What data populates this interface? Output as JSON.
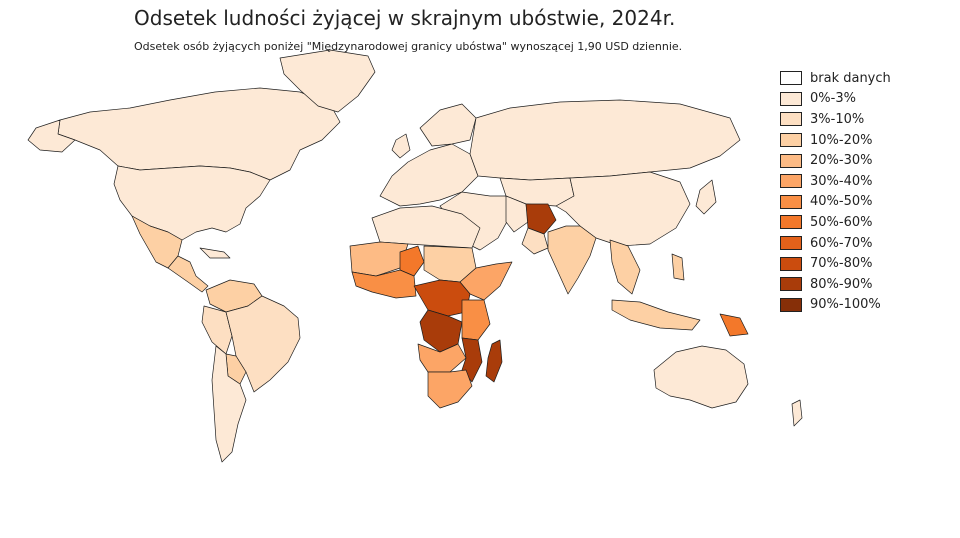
{
  "header": {
    "title": "Odsetek ludności żyjącej w skrajnym ubóstwie, 2024r.",
    "subtitle": "Odsetek osób żyjących poniżej \"Międzynarodowej granicy ubóstwa\" wynoszącej 1,90 USD dziennie."
  },
  "legend": [
    {
      "label": "brak danych",
      "color": "#ffffff"
    },
    {
      "label": "0%-3%",
      "color": "#fde9d6"
    },
    {
      "label": "3%-10%",
      "color": "#fddfc2"
    },
    {
      "label": "10%-20%",
      "color": "#fdd0a4"
    },
    {
      "label": "20%-30%",
      "color": "#fdbb85"
    },
    {
      "label": "30%-40%",
      "color": "#fca566"
    },
    {
      "label": "40%-50%",
      "color": "#f98f45"
    },
    {
      "label": "50%-60%",
      "color": "#f3782a"
    },
    {
      "label": "60%-70%",
      "color": "#e3611a"
    },
    {
      "label": "70%-80%",
      "color": "#cb4c0e"
    },
    {
      "label": "80%-90%",
      "color": "#a93c0a"
    },
    {
      "label": "90%-100%",
      "color": "#862f08"
    }
  ]
}
